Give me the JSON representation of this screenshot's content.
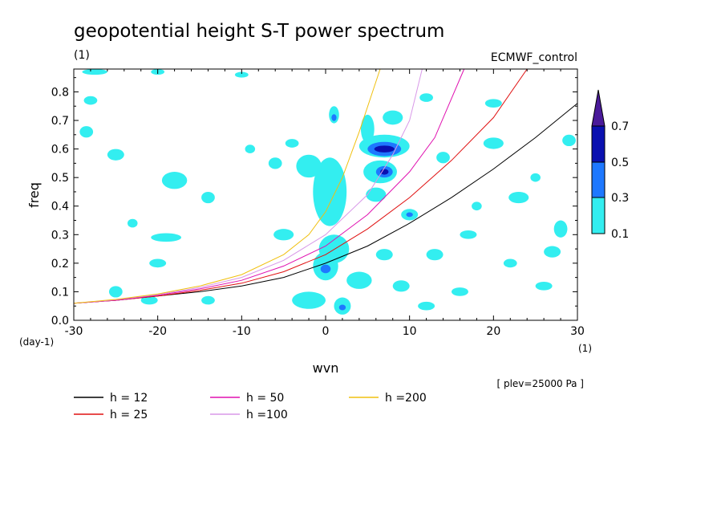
{
  "chart_data": {
    "type": "contour",
    "title": "geopotential height S-T power spectrum",
    "units_label": "(1)",
    "model_label": "ECMWF_control",
    "xlabel": "wvn",
    "xunit": "(1)",
    "ylabel": "freq",
    "yunit": "(day-1)",
    "level_note": "[ plev=25000 Pa ]",
    "xlim": [
      -30,
      30
    ],
    "ylim": [
      0,
      0.88
    ],
    "xticks": [
      -30,
      -20,
      -10,
      0,
      10,
      20,
      30
    ],
    "yticks": [
      0.0,
      0.1,
      0.2,
      0.3,
      0.4,
      0.5,
      0.6,
      0.7,
      0.8
    ],
    "xtick_labels": [
      "-30",
      "-20",
      "-10",
      "0",
      "10",
      "20",
      "30"
    ],
    "ytick_labels": [
      "0.0",
      "0.1",
      "0.2",
      "0.3",
      "0.4",
      "0.5",
      "0.6",
      "0.7",
      "0.8"
    ],
    "colorbar": {
      "levels": [
        "0.1",
        "0.3",
        "0.5",
        "0.7"
      ],
      "colors": [
        "#33eef0",
        "#1e78ff",
        "#0a10b0",
        "#4a1a9a"
      ]
    },
    "curves": [
      {
        "name": "h = 12",
        "color": "#000000",
        "points": [
          [
            -30,
            0.06
          ],
          [
            -25,
            0.07
          ],
          [
            -20,
            0.085
          ],
          [
            -15,
            0.1
          ],
          [
            -10,
            0.12
          ],
          [
            -5,
            0.15
          ],
          [
            0,
            0.2
          ],
          [
            5,
            0.26
          ],
          [
            10,
            0.34
          ],
          [
            15,
            0.43
          ],
          [
            20,
            0.53
          ],
          [
            25,
            0.64
          ],
          [
            30,
            0.76
          ]
        ]
      },
      {
        "name": "h = 25",
        "color": "#e01010",
        "points": [
          [
            -30,
            0.06
          ],
          [
            -25,
            0.07
          ],
          [
            -20,
            0.085
          ],
          [
            -15,
            0.105
          ],
          [
            -10,
            0.13
          ],
          [
            -5,
            0.17
          ],
          [
            0,
            0.23
          ],
          [
            5,
            0.32
          ],
          [
            10,
            0.43
          ],
          [
            15,
            0.56
          ],
          [
            20,
            0.71
          ],
          [
            24,
            0.88
          ]
        ]
      },
      {
        "name": "h = 50",
        "color": "#e010b0",
        "points": [
          [
            -30,
            0.06
          ],
          [
            -25,
            0.07
          ],
          [
            -20,
            0.088
          ],
          [
            -15,
            0.11
          ],
          [
            -10,
            0.14
          ],
          [
            -5,
            0.19
          ],
          [
            0,
            0.26
          ],
          [
            5,
            0.37
          ],
          [
            10,
            0.52
          ],
          [
            13,
            0.64
          ],
          [
            16.5,
            0.88
          ]
        ]
      },
      {
        "name": "h =100",
        "color": "#d898e8",
        "points": [
          [
            -30,
            0.06
          ],
          [
            -25,
            0.072
          ],
          [
            -20,
            0.09
          ],
          [
            -15,
            0.115
          ],
          [
            -10,
            0.15
          ],
          [
            -5,
            0.21
          ],
          [
            0,
            0.3
          ],
          [
            5,
            0.44
          ],
          [
            8,
            0.58
          ],
          [
            10,
            0.7
          ],
          [
            11.5,
            0.88
          ]
        ]
      },
      {
        "name": "h =200",
        "color": "#f0c010",
        "points": [
          [
            -30,
            0.06
          ],
          [
            -25,
            0.073
          ],
          [
            -20,
            0.092
          ],
          [
            -15,
            0.12
          ],
          [
            -10,
            0.16
          ],
          [
            -5,
            0.23
          ],
          [
            -2,
            0.3
          ],
          [
            0,
            0.38
          ],
          [
            2,
            0.5
          ],
          [
            4,
            0.66
          ],
          [
            6.5,
            0.88
          ]
        ]
      }
    ],
    "contours": [
      {
        "level": 0.1,
        "x": 0.5,
        "y": 0.45,
        "rx": 2.0,
        "ry": 0.12
      },
      {
        "level": 0.1,
        "x": 1.0,
        "y": 0.25,
        "rx": 1.8,
        "ry": 0.05
      },
      {
        "level": 0.1,
        "x": 0.0,
        "y": 0.19,
        "rx": 1.5,
        "ry": 0.05
      },
      {
        "level": 0.3,
        "x": 0.0,
        "y": 0.18,
        "rx": 0.6,
        "ry": 0.015
      },
      {
        "level": 0.1,
        "x": 2.0,
        "y": 0.05,
        "rx": 1.0,
        "ry": 0.03
      },
      {
        "level": 0.3,
        "x": 2.0,
        "y": 0.045,
        "rx": 0.4,
        "ry": 0.01
      },
      {
        "level": 0.1,
        "x": 5.0,
        "y": 0.67,
        "rx": 0.8,
        "ry": 0.05
      },
      {
        "level": 0.1,
        "x": 1.0,
        "y": 0.72,
        "rx": 0.6,
        "ry": 0.03
      },
      {
        "level": 0.3,
        "x": 1.0,
        "y": 0.71,
        "rx": 0.3,
        "ry": 0.012
      },
      {
        "level": 0.1,
        "x": 8.0,
        "y": 0.71,
        "rx": 1.2,
        "ry": 0.025
      },
      {
        "level": 0.1,
        "x": 7.0,
        "y": 0.61,
        "rx": 3.0,
        "ry": 0.04
      },
      {
        "level": 0.3,
        "x": 7.0,
        "y": 0.6,
        "rx": 2.0,
        "ry": 0.025
      },
      {
        "level": 0.5,
        "x": 7.0,
        "y": 0.6,
        "rx": 1.2,
        "ry": 0.012
      },
      {
        "level": 0.1,
        "x": 6.5,
        "y": 0.52,
        "rx": 2.0,
        "ry": 0.04
      },
      {
        "level": 0.3,
        "x": 7.0,
        "y": 0.52,
        "rx": 1.0,
        "ry": 0.02
      },
      {
        "level": 0.5,
        "x": 7.0,
        "y": 0.52,
        "rx": 0.5,
        "ry": 0.01
      },
      {
        "level": 0.1,
        "x": 10.0,
        "y": 0.37,
        "rx": 1.0,
        "ry": 0.02
      },
      {
        "level": 0.3,
        "x": 10.0,
        "y": 0.37,
        "rx": 0.4,
        "ry": 0.008
      },
      {
        "level": 0.1,
        "x": 6.0,
        "y": 0.44,
        "rx": 1.2,
        "ry": 0.025
      },
      {
        "level": 0.1,
        "x": -2.0,
        "y": 0.54,
        "rx": 1.5,
        "ry": 0.04
      },
      {
        "level": 0.1,
        "x": -18.0,
        "y": 0.49,
        "rx": 1.5,
        "ry": 0.03
      },
      {
        "level": 0.1,
        "x": -19.0,
        "y": 0.29,
        "rx": 1.8,
        "ry": 0.015
      },
      {
        "level": 0.1,
        "x": -25.0,
        "y": 0.1,
        "rx": 0.8,
        "ry": 0.02
      },
      {
        "level": 0.1,
        "x": -21.0,
        "y": 0.07,
        "rx": 1.0,
        "ry": 0.015
      },
      {
        "level": 0.1,
        "x": -5.0,
        "y": 0.3,
        "rx": 1.2,
        "ry": 0.02
      },
      {
        "level": 0.1,
        "x": -6.0,
        "y": 0.55,
        "rx": 0.8,
        "ry": 0.02
      },
      {
        "level": 0.1,
        "x": -28.0,
        "y": 0.77,
        "rx": 0.8,
        "ry": 0.015
      },
      {
        "level": 0.1,
        "x": -28.5,
        "y": 0.66,
        "rx": 0.8,
        "ry": 0.02
      },
      {
        "level": 0.1,
        "x": -25.0,
        "y": 0.58,
        "rx": 1.0,
        "ry": 0.02
      },
      {
        "level": 0.1,
        "x": -20.0,
        "y": 0.2,
        "rx": 1.0,
        "ry": 0.015
      },
      {
        "level": 0.1,
        "x": -14.0,
        "y": 0.07,
        "rx": 0.8,
        "ry": 0.015
      },
      {
        "level": 0.1,
        "x": -2.0,
        "y": 0.07,
        "rx": 2.0,
        "ry": 0.03
      },
      {
        "level": 0.1,
        "x": 4.0,
        "y": 0.14,
        "rx": 1.5,
        "ry": 0.03
      },
      {
        "level": 0.1,
        "x": 7.0,
        "y": 0.23,
        "rx": 1.0,
        "ry": 0.02
      },
      {
        "level": 0.1,
        "x": 13.0,
        "y": 0.23,
        "rx": 1.0,
        "ry": 0.02
      },
      {
        "level": 0.1,
        "x": 17.0,
        "y": 0.3,
        "rx": 1.0,
        "ry": 0.015
      },
      {
        "level": 0.1,
        "x": 23.0,
        "y": 0.43,
        "rx": 1.2,
        "ry": 0.02
      },
      {
        "level": 0.1,
        "x": 20.0,
        "y": 0.62,
        "rx": 1.2,
        "ry": 0.02
      },
      {
        "level": 0.1,
        "x": 27.0,
        "y": 0.24,
        "rx": 1.0,
        "ry": 0.02
      },
      {
        "level": 0.1,
        "x": 28.0,
        "y": 0.32,
        "rx": 0.8,
        "ry": 0.03
      },
      {
        "level": 0.1,
        "x": 26.0,
        "y": 0.12,
        "rx": 1.0,
        "ry": 0.015
      },
      {
        "level": 0.1,
        "x": 16.0,
        "y": 0.1,
        "rx": 1.0,
        "ry": 0.015
      },
      {
        "level": 0.1,
        "x": 12.0,
        "y": 0.05,
        "rx": 1.0,
        "ry": 0.015
      },
      {
        "level": 0.1,
        "x": 20.0,
        "y": 0.76,
        "rx": 1.0,
        "ry": 0.015
      },
      {
        "level": 0.1,
        "x": 29.0,
        "y": 0.63,
        "rx": 0.8,
        "ry": 0.02
      },
      {
        "level": 0.1,
        "x": -27.5,
        "y": 0.87,
        "rx": 1.5,
        "ry": 0.01
      },
      {
        "level": 0.1,
        "x": -20.0,
        "y": 0.87,
        "rx": 0.8,
        "ry": 0.01
      },
      {
        "level": 0.1,
        "x": -10.0,
        "y": 0.86,
        "rx": 0.8,
        "ry": 0.01
      },
      {
        "level": 0.1,
        "x": -14.0,
        "y": 0.43,
        "rx": 0.8,
        "ry": 0.02
      },
      {
        "level": 0.1,
        "x": -4.0,
        "y": 0.62,
        "rx": 0.8,
        "ry": 0.015
      },
      {
        "level": 0.1,
        "x": 14.0,
        "y": 0.57,
        "rx": 0.8,
        "ry": 0.02
      },
      {
        "level": 0.1,
        "x": 12.0,
        "y": 0.78,
        "rx": 0.8,
        "ry": 0.015
      },
      {
        "level": 0.1,
        "x": 9.0,
        "y": 0.12,
        "rx": 1.0,
        "ry": 0.02
      },
      {
        "level": 0.1,
        "x": 22.0,
        "y": 0.2,
        "rx": 0.8,
        "ry": 0.015
      },
      {
        "level": 0.1,
        "x": -9.0,
        "y": 0.6,
        "rx": 0.6,
        "ry": 0.015
      },
      {
        "level": 0.1,
        "x": -23.0,
        "y": 0.34,
        "rx": 0.6,
        "ry": 0.015
      },
      {
        "level": 0.1,
        "x": 25.0,
        "y": 0.5,
        "rx": 0.6,
        "ry": 0.015
      },
      {
        "level": 0.1,
        "x": 18.0,
        "y": 0.4,
        "rx": 0.6,
        "ry": 0.015
      }
    ]
  }
}
